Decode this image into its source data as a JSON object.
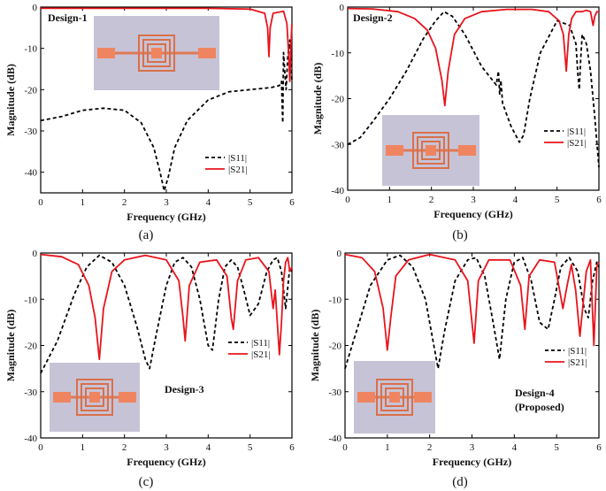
{
  "chart_data": [
    {
      "type": "line",
      "panel_label": "(a)",
      "title": "Design-1",
      "xlabel": "Frequency (GHz)",
      "ylabel": "Magnitude (dB)",
      "xlim": [
        0,
        6
      ],
      "ylim": [
        -45,
        0
      ],
      "xticks": [
        "0",
        "1",
        "2",
        "3",
        "4",
        "5",
        "6"
      ],
      "yticks": [
        "0",
        "-10",
        "-20",
        "-30",
        "-40"
      ],
      "legend": "bottom-right",
      "series": [
        {
          "name": "|S11|",
          "color": "#000000",
          "dash": "dashed",
          "x": [
            0,
            0.5,
            1.0,
            1.5,
            2.0,
            2.4,
            2.7,
            2.85,
            2.95,
            3.05,
            3.2,
            3.5,
            4.0,
            4.5,
            5.0,
            5.5,
            5.7,
            5.75,
            5.78,
            5.8,
            5.83,
            5.86,
            5.9,
            5.95,
            6.0
          ],
          "y": [
            -27.5,
            -26.5,
            -25,
            -24.5,
            -25,
            -28,
            -34,
            -40,
            -44.5,
            -41,
            -34,
            -27.5,
            -22.5,
            -20.5,
            -20,
            -19.5,
            -19,
            -18,
            -28,
            -11,
            -16,
            -20,
            -12,
            -8,
            -18
          ]
        },
        {
          "name": "|S21|",
          "color": "#e8141c",
          "dash": "solid",
          "x": [
            0,
            1.0,
            2.0,
            3.0,
            4.0,
            5.0,
            5.35,
            5.42,
            5.45,
            5.48,
            5.55,
            5.8,
            5.88,
            5.92,
            5.95,
            5.98,
            6.0
          ],
          "y": [
            -0.3,
            -0.3,
            -0.3,
            -0.3,
            -0.3,
            -0.5,
            -1.5,
            -5,
            -12,
            -5,
            -1.5,
            -1,
            -4,
            -11,
            -18,
            -8,
            -4
          ]
        }
      ],
      "annotations": []
    },
    {
      "type": "line",
      "panel_label": "(b)",
      "title": "Design-2",
      "xlabel": "Frequency (GHz)",
      "ylabel": "Magnitude (dB)",
      "xlim": [
        0,
        6
      ],
      "ylim": [
        -40,
        0
      ],
      "xticks": [
        "0",
        "1",
        "2",
        "3",
        "4",
        "5",
        "6"
      ],
      "yticks": [
        "0",
        "-10",
        "-20",
        "-30",
        "-40"
      ],
      "legend": "right",
      "series": [
        {
          "name": "|S11|",
          "color": "#000000",
          "dash": "dashed",
          "x": [
            0,
            0.3,
            0.6,
            1.0,
            1.4,
            1.8,
            2.1,
            2.3,
            2.5,
            2.8,
            3.2,
            3.55,
            3.6,
            3.63,
            3.66,
            3.7,
            3.9,
            4.1,
            4.2,
            4.35,
            4.6,
            5.0,
            5.3,
            5.45,
            5.5,
            5.53,
            5.56,
            5.6,
            5.7,
            5.8,
            5.9,
            6.0
          ],
          "y": [
            -30,
            -28.5,
            -25,
            -20,
            -14,
            -7,
            -3,
            -1,
            -2,
            -6,
            -13,
            -17,
            -14,
            -19,
            -16,
            -21,
            -26,
            -29.5,
            -28,
            -20,
            -10,
            -3,
            -4,
            -8,
            -15,
            -18,
            -12,
            -6,
            -8,
            -14,
            -24,
            -35
          ]
        },
        {
          "name": "|S21|",
          "color": "#e8141c",
          "dash": "solid",
          "x": [
            0,
            0.6,
            1.2,
            1.6,
            1.9,
            2.1,
            2.25,
            2.32,
            2.4,
            2.55,
            2.8,
            3.2,
            3.8,
            4.4,
            4.8,
            5.05,
            5.15,
            5.22,
            5.28,
            5.35,
            5.45,
            5.6,
            5.7,
            5.8,
            5.86,
            5.9,
            5.95,
            6.0
          ],
          "y": [
            -0.3,
            -0.4,
            -1,
            -2.5,
            -5,
            -9,
            -16,
            -21.5,
            -14,
            -6,
            -2.5,
            -1,
            -0.5,
            -0.5,
            -1,
            -3,
            -6,
            -14,
            -6,
            -2.5,
            -1,
            -1,
            -0.7,
            -1,
            -4,
            -2,
            -1,
            -1
          ]
        }
      ],
      "annotations": []
    },
    {
      "type": "line",
      "panel_label": "(c)",
      "title": "Design-3",
      "xlabel": "Frequency (GHz)",
      "ylabel": "Magnitude (dB)",
      "xlim": [
        0,
        6
      ],
      "ylim": [
        -40,
        0
      ],
      "xticks": [
        "0",
        "1",
        "2",
        "3",
        "4",
        "5",
        "6"
      ],
      "yticks": [
        "0",
        "-10",
        "-20",
        "-30",
        "-40"
      ],
      "legend": "right",
      "series": [
        {
          "name": "|S11|",
          "color": "#000000",
          "dash": "dashed",
          "x": [
            0,
            0.4,
            0.8,
            1.1,
            1.4,
            1.7,
            2.0,
            2.3,
            2.5,
            2.6,
            2.75,
            3.0,
            3.2,
            3.4,
            3.6,
            3.8,
            4.0,
            4.1,
            4.25,
            4.4,
            4.55,
            4.7,
            4.85,
            5.0,
            5.2,
            5.4,
            5.55,
            5.65,
            5.75,
            5.85,
            5.95,
            6.0
          ],
          "y": [
            -26,
            -19,
            -9,
            -3,
            -0.5,
            -2,
            -7,
            -16,
            -23,
            -25,
            -18,
            -7,
            -2,
            -1,
            -3,
            -10,
            -20,
            -21,
            -10,
            -3,
            -1.5,
            -3,
            -8,
            -13.5,
            -11,
            -4,
            -1.5,
            -1,
            -4,
            -12,
            -3,
            -4
          ]
        },
        {
          "name": "|S21|",
          "color": "#e8141c",
          "dash": "solid",
          "x": [
            0,
            0.5,
            0.9,
            1.15,
            1.3,
            1.4,
            1.5,
            1.7,
            2.0,
            2.5,
            3.0,
            3.3,
            3.4,
            3.45,
            3.55,
            3.8,
            4.2,
            4.45,
            4.55,
            4.6,
            4.7,
            4.9,
            5.2,
            5.45,
            5.55,
            5.6,
            5.7,
            5.75,
            5.8,
            5.85,
            5.9,
            5.95,
            6.0
          ],
          "y": [
            -0.3,
            -0.8,
            -2.5,
            -7,
            -14,
            -23,
            -12,
            -4,
            -1.5,
            -0.5,
            -1.5,
            -6,
            -14,
            -19,
            -7,
            -2,
            -1.5,
            -5,
            -14,
            -16.5,
            -6,
            -1.5,
            -1,
            -4,
            -12,
            -8,
            -22,
            -15,
            -6,
            -2,
            -1,
            -4,
            -3
          ]
        }
      ],
      "annotations": []
    },
    {
      "type": "line",
      "panel_label": "(d)",
      "title": "Design-4",
      "subtitle": "(Proposed)",
      "xlabel": "Frequency (GHz)",
      "ylabel": "Magnitude (dB)",
      "xlim": [
        0,
        6
      ],
      "ylim": [
        -40,
        0
      ],
      "xticks": [
        "0",
        "1",
        "2",
        "3",
        "4",
        "5",
        "6"
      ],
      "yticks": [
        "0",
        "-10",
        "-20",
        "-30",
        "-40"
      ],
      "legend": "right",
      "series": [
        {
          "name": "|S11|",
          "color": "#000000",
          "dash": "dashed",
          "x": [
            0,
            0.3,
            0.6,
            1.0,
            1.3,
            1.6,
            1.9,
            2.1,
            2.2,
            2.35,
            2.6,
            2.9,
            3.1,
            3.3,
            3.5,
            3.65,
            3.8,
            4.0,
            4.2,
            4.4,
            4.6,
            4.8,
            4.95,
            5.1,
            5.3,
            5.5,
            5.65,
            5.75,
            5.85,
            5.95,
            6.0
          ],
          "y": [
            -25,
            -16,
            -7,
            -1.5,
            -0.5,
            -3,
            -10,
            -20,
            -25,
            -17,
            -6,
            -1.5,
            -1,
            -5,
            -15,
            -23,
            -10,
            -2,
            -1,
            -6,
            -15,
            -16.5,
            -10,
            -3,
            -1,
            -4,
            -12,
            -14,
            -6,
            -2,
            -3
          ]
        },
        {
          "name": "|S21|",
          "color": "#e8141c",
          "dash": "solid",
          "x": [
            0,
            0.4,
            0.7,
            0.9,
            1.0,
            1.08,
            1.2,
            1.5,
            2.0,
            2.6,
            2.9,
            3.0,
            3.05,
            3.15,
            3.4,
            3.9,
            4.15,
            4.25,
            4.35,
            4.6,
            4.95,
            5.05,
            5.15,
            5.25,
            5.35,
            5.45,
            5.55,
            5.7,
            5.8,
            5.88,
            5.95,
            6.0
          ],
          "y": [
            -0.3,
            -1,
            -4,
            -12,
            -21,
            -14,
            -5,
            -1.5,
            -0.3,
            -1.5,
            -6,
            -15,
            -19.5,
            -6,
            -1.5,
            -1.5,
            -7,
            -16.5,
            -5,
            -1.5,
            -2,
            -7,
            -12,
            -7,
            -2.5,
            -8,
            -18,
            -4,
            -1.5,
            -20,
            -3,
            -2
          ]
        }
      ],
      "annotations": []
    }
  ]
}
